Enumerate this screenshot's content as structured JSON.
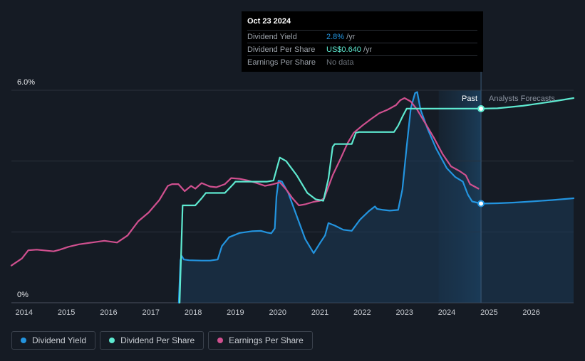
{
  "tooltip": {
    "date": "Oct 23 2024",
    "rows": [
      {
        "label": "Dividend Yield",
        "value": "2.8%",
        "unit": " /yr"
      },
      {
        "label": "Dividend Per Share",
        "value": "US$0.640",
        "unit": " /yr"
      },
      {
        "label": "Earnings Per Share",
        "value": "No data",
        "unit": ""
      }
    ]
  },
  "legend": [
    {
      "label": "Dividend Yield",
      "color": "#2394df"
    },
    {
      "label": "Dividend Per Share",
      "color": "#5ee9d0"
    },
    {
      "label": "Earnings Per Share",
      "color": "#d0508f"
    }
  ],
  "chart_data": {
    "type": "line",
    "title": "",
    "xlabel": "",
    "ylabel": "",
    "xlim": [
      2013.7,
      2027.0
    ],
    "ylim": [
      0,
      6.0
    ],
    "y_tick_labels": [
      "6.0%",
      "0%"
    ],
    "x_ticks": [
      2014,
      2015,
      2016,
      2017,
      2018,
      2019,
      2020,
      2021,
      2022,
      2023,
      2024,
      2025,
      2026
    ],
    "past_label": "Past",
    "forecast_label": "Analysts Forecasts",
    "divider_x": 2024.81,
    "shade_start_x": 2023.81,
    "grid": true,
    "legend_position": "bottom-left",
    "series": [
      {
        "name": "Dividend Yield",
        "color": "#2394df",
        "filled": true,
        "points": [
          [
            2017.66,
            0
          ],
          [
            2017.7,
            1.2
          ],
          [
            2017.73,
            1.32
          ],
          [
            2017.78,
            1.22
          ],
          [
            2017.9,
            1.2
          ],
          [
            2018.2,
            1.19
          ],
          [
            2018.4,
            1.19
          ],
          [
            2018.58,
            1.22
          ],
          [
            2018.68,
            1.6
          ],
          [
            2018.85,
            1.85
          ],
          [
            2019.1,
            1.97
          ],
          [
            2019.4,
            2.02
          ],
          [
            2019.6,
            2.03
          ],
          [
            2019.75,
            1.98
          ],
          [
            2019.85,
            1.96
          ],
          [
            2019.93,
            2.1
          ],
          [
            2019.97,
            3.0
          ],
          [
            2020.02,
            3.45
          ],
          [
            2020.1,
            3.42
          ],
          [
            2020.25,
            3.1
          ],
          [
            2020.45,
            2.45
          ],
          [
            2020.65,
            1.8
          ],
          [
            2020.85,
            1.4
          ],
          [
            2021.02,
            1.72
          ],
          [
            2021.12,
            1.9
          ],
          [
            2021.2,
            2.25
          ],
          [
            2021.35,
            2.18
          ],
          [
            2021.55,
            2.06
          ],
          [
            2021.75,
            2.03
          ],
          [
            2021.95,
            2.35
          ],
          [
            2022.15,
            2.58
          ],
          [
            2022.3,
            2.72
          ],
          [
            2022.35,
            2.65
          ],
          [
            2022.5,
            2.62
          ],
          [
            2022.65,
            2.6
          ],
          [
            2022.85,
            2.62
          ],
          [
            2022.95,
            3.2
          ],
          [
            2023.05,
            4.4
          ],
          [
            2023.15,
            5.5
          ],
          [
            2023.25,
            5.92
          ],
          [
            2023.3,
            5.95
          ],
          [
            2023.38,
            5.45
          ],
          [
            2023.55,
            4.9
          ],
          [
            2023.75,
            4.35
          ],
          [
            2024.0,
            3.8
          ],
          [
            2024.2,
            3.55
          ],
          [
            2024.38,
            3.42
          ],
          [
            2024.5,
            3.05
          ],
          [
            2024.6,
            2.86
          ],
          [
            2024.81,
            2.8
          ],
          [
            2025.2,
            2.81
          ],
          [
            2025.6,
            2.83
          ],
          [
            2026.0,
            2.86
          ],
          [
            2026.5,
            2.9
          ],
          [
            2027.0,
            2.95
          ]
        ]
      },
      {
        "name": "Dividend Per Share",
        "color": "#5ee9d0",
        "filled": false,
        "points": [
          [
            2017.68,
            0
          ],
          [
            2017.75,
            2.75
          ],
          [
            2017.8,
            2.75
          ],
          [
            2018.05,
            2.75
          ],
          [
            2018.2,
            2.95
          ],
          [
            2018.3,
            3.1
          ],
          [
            2018.75,
            3.1
          ],
          [
            2018.95,
            3.35
          ],
          [
            2019.0,
            3.42
          ],
          [
            2019.75,
            3.42
          ],
          [
            2019.9,
            3.45
          ],
          [
            2020.05,
            4.1
          ],
          [
            2020.2,
            4.0
          ],
          [
            2020.45,
            3.6
          ],
          [
            2020.7,
            3.1
          ],
          [
            2020.9,
            2.92
          ],
          [
            2021.08,
            2.88
          ],
          [
            2021.2,
            3.5
          ],
          [
            2021.3,
            4.4
          ],
          [
            2021.35,
            4.48
          ],
          [
            2021.75,
            4.48
          ],
          [
            2021.85,
            4.8
          ],
          [
            2021.93,
            4.82
          ],
          [
            2022.75,
            4.82
          ],
          [
            2022.85,
            5.0
          ],
          [
            2022.95,
            5.25
          ],
          [
            2023.05,
            5.48
          ],
          [
            2023.3,
            5.48
          ],
          [
            2024.0,
            5.48
          ],
          [
            2024.81,
            5.48
          ],
          [
            2025.2,
            5.49
          ],
          [
            2025.8,
            5.56
          ],
          [
            2026.5,
            5.68
          ],
          [
            2027.0,
            5.78
          ]
        ]
      },
      {
        "name": "Earnings Per Share",
        "color": "#d0508f",
        "filled": false,
        "points": [
          [
            2013.7,
            1.05
          ],
          [
            2013.95,
            1.25
          ],
          [
            2014.1,
            1.48
          ],
          [
            2014.3,
            1.5
          ],
          [
            2014.7,
            1.45
          ],
          [
            2014.85,
            1.5
          ],
          [
            2015.05,
            1.58
          ],
          [
            2015.3,
            1.65
          ],
          [
            2015.6,
            1.7
          ],
          [
            2015.9,
            1.75
          ],
          [
            2016.2,
            1.7
          ],
          [
            2016.45,
            1.9
          ],
          [
            2016.7,
            2.3
          ],
          [
            2016.95,
            2.55
          ],
          [
            2017.2,
            2.9
          ],
          [
            2017.4,
            3.3
          ],
          [
            2017.5,
            3.35
          ],
          [
            2017.65,
            3.35
          ],
          [
            2017.8,
            3.15
          ],
          [
            2017.95,
            3.3
          ],
          [
            2018.05,
            3.22
          ],
          [
            2018.2,
            3.38
          ],
          [
            2018.4,
            3.28
          ],
          [
            2018.55,
            3.26
          ],
          [
            2018.75,
            3.35
          ],
          [
            2018.9,
            3.52
          ],
          [
            2019.1,
            3.5
          ],
          [
            2019.3,
            3.45
          ],
          [
            2019.5,
            3.38
          ],
          [
            2019.7,
            3.3
          ],
          [
            2019.9,
            3.35
          ],
          [
            2020.05,
            3.4
          ],
          [
            2020.2,
            3.2
          ],
          [
            2020.35,
            2.95
          ],
          [
            2020.5,
            2.75
          ],
          [
            2020.65,
            2.78
          ],
          [
            2020.85,
            2.85
          ],
          [
            2021.0,
            2.88
          ],
          [
            2021.1,
            2.95
          ],
          [
            2021.3,
            3.6
          ],
          [
            2021.5,
            4.1
          ],
          [
            2021.65,
            4.5
          ],
          [
            2021.8,
            4.8
          ],
          [
            2022.0,
            5.0
          ],
          [
            2022.2,
            5.18
          ],
          [
            2022.4,
            5.35
          ],
          [
            2022.6,
            5.45
          ],
          [
            2022.8,
            5.58
          ],
          [
            2022.9,
            5.72
          ],
          [
            2023.0,
            5.78
          ],
          [
            2023.15,
            5.68
          ],
          [
            2023.3,
            5.45
          ],
          [
            2023.5,
            5.05
          ],
          [
            2023.7,
            4.65
          ],
          [
            2023.9,
            4.2
          ],
          [
            2024.1,
            3.85
          ],
          [
            2024.3,
            3.72
          ],
          [
            2024.45,
            3.6
          ],
          [
            2024.55,
            3.35
          ],
          [
            2024.75,
            3.22
          ]
        ]
      }
    ],
    "markers": [
      {
        "series": "Dividend Per Share",
        "x": 2024.81,
        "y": 5.48
      },
      {
        "series": "Dividend Yield",
        "x": 2024.81,
        "y": 2.8
      }
    ]
  }
}
